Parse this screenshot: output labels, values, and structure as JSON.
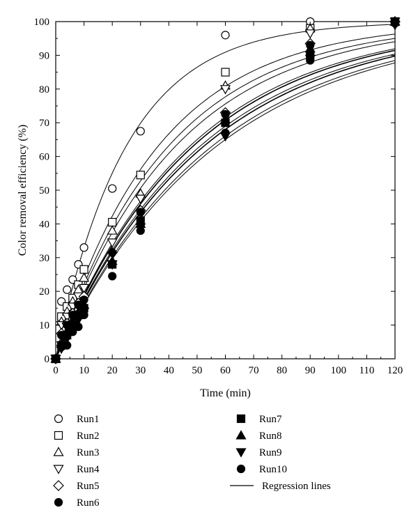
{
  "chart_data": {
    "type": "scatter",
    "xlabel": "Time (min)",
    "ylabel": "Color removal efficiency (%)",
    "xlim": [
      0,
      120
    ],
    "ylim": [
      0,
      100
    ],
    "x_ticks": [
      0,
      10,
      20,
      30,
      40,
      50,
      60,
      70,
      80,
      90,
      100,
      110,
      120
    ],
    "y_ticks": [
      0,
      10,
      20,
      30,
      40,
      50,
      60,
      70,
      80,
      90,
      100
    ],
    "grid": false,
    "legend_position": "below",
    "x": [
      0,
      2,
      4,
      6,
      8,
      10,
      20,
      30,
      60,
      90,
      120
    ],
    "series": [
      {
        "name": "Run1",
        "marker": "circle-open",
        "values": [
          0,
          17,
          20.5,
          23.5,
          28,
          33,
          50.5,
          67.5,
          96,
          100,
          100
        ]
      },
      {
        "name": "Run2",
        "marker": "square-open",
        "values": [
          0,
          12.5,
          15.5,
          18,
          22,
          26.5,
          40.5,
          54.5,
          85,
          98,
          100
        ]
      },
      {
        "name": "Run3",
        "marker": "triangle-up-open",
        "values": [
          0,
          11,
          14,
          17,
          20.5,
          24,
          38,
          49,
          81,
          98,
          100
        ]
      },
      {
        "name": "Run4",
        "marker": "triangle-down-open",
        "values": [
          0,
          10,
          12.5,
          15.5,
          18.5,
          21,
          34.5,
          47.5,
          80,
          96.5,
          100
        ]
      },
      {
        "name": "Run5",
        "marker": "diamond-open",
        "values": [
          0,
          7.5,
          10.5,
          13.5,
          16.5,
          18.5,
          31.5,
          44,
          73,
          93.5,
          100
        ]
      },
      {
        "name": "Run6",
        "marker": "circle-filled",
        "values": [
          0,
          7,
          10,
          13,
          16,
          17.5,
          31.5,
          43.5,
          72.5,
          93,
          100
        ]
      },
      {
        "name": "Run7",
        "marker": "square-filled",
        "values": [
          0,
          4,
          7,
          10,
          13,
          15,
          28,
          41,
          70,
          90,
          100
        ]
      },
      {
        "name": "Run8",
        "marker": "triangle-up-filled",
        "values": [
          0,
          4.5,
          8,
          11,
          13.5,
          16,
          29,
          40,
          71,
          92,
          100
        ]
      },
      {
        "name": "Run9",
        "marker": "triangle-down-filled",
        "values": [
          0,
          3,
          6,
          9,
          11.5,
          14,
          28,
          39,
          66,
          89,
          99
        ]
      },
      {
        "name": "Run10",
        "marker": "circle-filled",
        "values": [
          0,
          3.5,
          4,
          8,
          9.5,
          13,
          24.5,
          38,
          67,
          88.5,
          99.5
        ]
      }
    ],
    "regression_lines": {
      "label": "Regression lines",
      "model": "y = 100*(1-exp(-k*x))",
      "k": [
        0.04,
        0.0275,
        0.025,
        0.0235,
        0.021,
        0.0205,
        0.019,
        0.0195,
        0.018,
        0.0175
      ]
    }
  }
}
